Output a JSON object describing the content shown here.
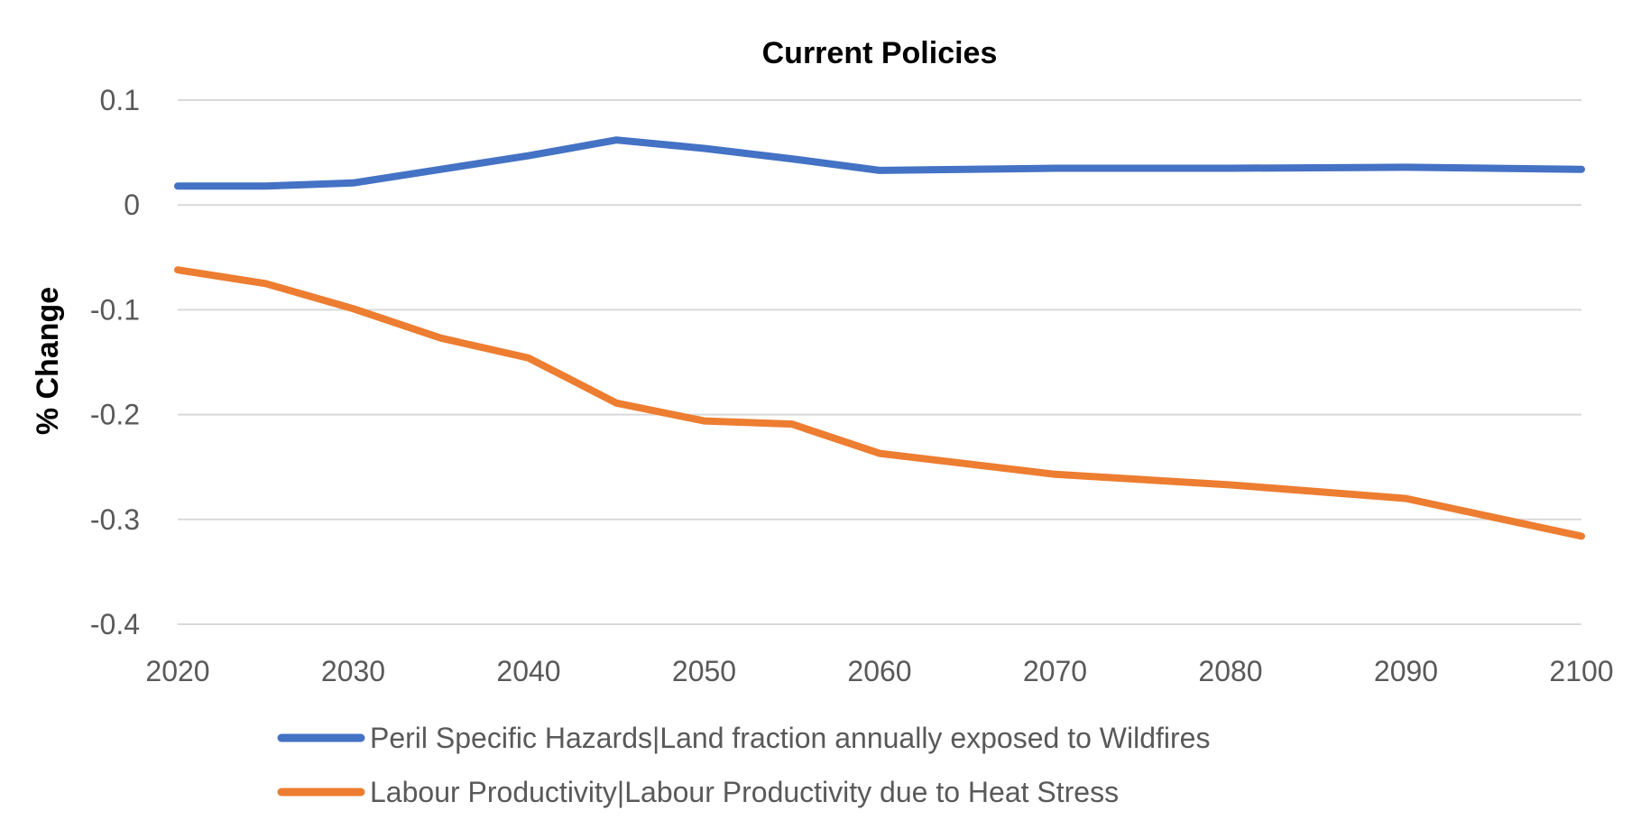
{
  "chart_data": {
    "type": "line",
    "title": "Current Policies",
    "xlabel": "",
    "ylabel": "% Change",
    "xlim": [
      2020,
      2100
    ],
    "ylim": [
      -0.4,
      0.1
    ],
    "x_ticks": [
      2020,
      2030,
      2040,
      2050,
      2060,
      2070,
      2080,
      2090,
      2100
    ],
    "y_ticks": [
      0.1,
      0,
      -0.1,
      -0.2,
      -0.3,
      -0.4
    ],
    "grid": true,
    "legend_position": "bottom",
    "x": [
      2020,
      2025,
      2030,
      2035,
      2040,
      2045,
      2050,
      2055,
      2060,
      2070,
      2080,
      2090,
      2100
    ],
    "series": [
      {
        "name": "Peril Specific Hazards|Land fraction annually exposed to Wildfires",
        "color": "#4472c4",
        "values": [
          0.018,
          0.018,
          0.021,
          0.034,
          0.047,
          0.062,
          0.054,
          0.044,
          0.033,
          0.035,
          0.035,
          0.036,
          0.034
        ]
      },
      {
        "name": "Labour Productivity|Labour Productivity due to Heat Stress",
        "color": "#ed7d31",
        "values": [
          -0.062,
          -0.075,
          -0.099,
          -0.127,
          -0.146,
          -0.189,
          -0.206,
          -0.209,
          -0.237,
          -0.257,
          -0.267,
          -0.28,
          -0.316
        ]
      }
    ]
  }
}
